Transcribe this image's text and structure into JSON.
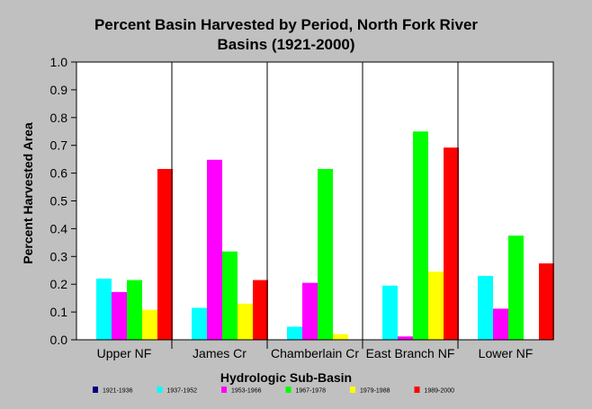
{
  "chart_data": {
    "type": "bar",
    "title_lines": [
      "Percent Basin Harvested by Period, North Fork River",
      "Basins (1921-2000)"
    ],
    "xlabel": "Hydrologic Sub-Basin",
    "ylabel": "Percent Harvested Area",
    "ylim": [
      0,
      1.0
    ],
    "yticks": [
      "0.0",
      "0.1",
      "0.2",
      "0.3",
      "0.4",
      "0.5",
      "0.6",
      "0.7",
      "0.8",
      "0.9",
      "1.0"
    ],
    "grid": false,
    "legend_position": "bottom",
    "categories": [
      "Upper NF",
      "James Cr",
      "Chamberlain Cr",
      "East Branch NF",
      "Lower NF"
    ],
    "series": [
      {
        "name": "1921-1936",
        "color": "#000080",
        "values": [
          0,
          0,
          0,
          0,
          0
        ]
      },
      {
        "name": "1937-1952",
        "color": "#00ffff",
        "values": [
          0.22,
          0.115,
          0.047,
          0.195,
          0.23
        ]
      },
      {
        "name": "1953-1966",
        "color": "#ff00ff",
        "values": [
          0.172,
          0.648,
          0.205,
          0.012,
          0.112
        ]
      },
      {
        "name": "1967-1978",
        "color": "#00ff00",
        "values": [
          0.215,
          0.318,
          0.615,
          0.75,
          0.375
        ]
      },
      {
        "name": "1979-1988",
        "color": "#ffff00",
        "values": [
          0.108,
          0.13,
          0.02,
          0.245,
          0
        ]
      },
      {
        "name": "1989-2000",
        "color": "#ff0000",
        "values": [
          0.615,
          0.215,
          0,
          0.692,
          0.275
        ]
      }
    ]
  }
}
